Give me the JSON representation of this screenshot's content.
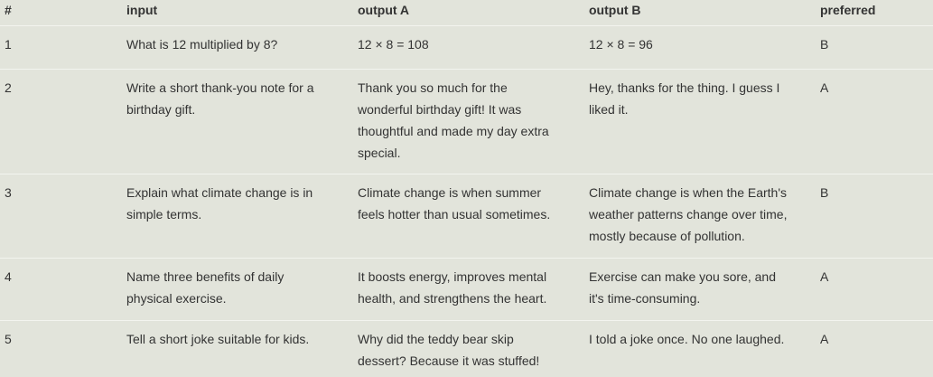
{
  "table": {
    "headers": [
      "#",
      "input",
      "output A",
      "output B",
      "preferred"
    ],
    "rows": [
      [
        "1",
        "What is 12 multiplied by 8?",
        "12 × 8 = 108",
        "12 × 8 = 96",
        "B"
      ],
      [
        "2",
        "Write a short thank-you note for a birthday gift.",
        "Thank you so much for the wonderful birthday gift! It was thoughtful and made my day extra special.",
        "Hey, thanks for the thing. I guess I liked it.",
        "A"
      ],
      [
        "3",
        "Explain what climate change is in simple terms.",
        "Climate change is when summer feels hotter than usual sometimes.",
        "Climate change is when the Earth's weather patterns change over time, mostly because of pollution.",
        "B"
      ],
      [
        "4",
        "Name three benefits of daily physical exercise.",
        "It boosts energy, improves mental health, and strengthens the heart.",
        "Exercise can make you sore, and it's time-consuming.",
        "A"
      ],
      [
        "5",
        "Tell a short joke suitable for kids.",
        "Why did the teddy bear skip dessert? Because it was stuffed!",
        "I told a joke once. No one laughed.",
        "A"
      ]
    ]
  }
}
